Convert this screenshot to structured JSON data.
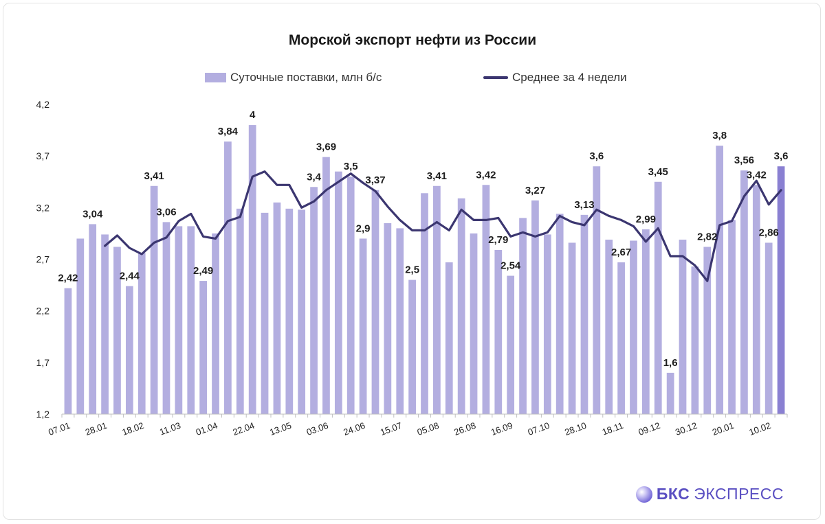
{
  "chart_data": {
    "type": "bar",
    "title": "Морской экспорт нефти из России",
    "legend": {
      "bars": "Суточные поставки, млн б/с",
      "line": "Среднее за 4 недели",
      "placement": "top"
    },
    "ylim": [
      1.2,
      4.2
    ],
    "yticks": [
      "1,2",
      "1,7",
      "2,2",
      "2,7",
      "3,2",
      "3,7",
      "4,2"
    ],
    "xtick_labels": [
      "07.01",
      "28.01",
      "18.02",
      "11.03",
      "01.04",
      "22.04",
      "13.05",
      "03.06",
      "24.06",
      "15.07",
      "05.08",
      "26.08",
      "16.09",
      "07.10",
      "28.10",
      "18.11",
      "09.12",
      "30.12",
      "20.01",
      "10.02"
    ],
    "xtick_every": 3,
    "series": [
      {
        "name": "Суточные поставки, млн б/с",
        "type": "bar",
        "values": [
          2.42,
          2.9,
          3.04,
          2.94,
          2.82,
          2.44,
          2.76,
          3.41,
          3.06,
          3.02,
          3.02,
          2.49,
          2.95,
          3.84,
          3.19,
          4.0,
          3.15,
          3.25,
          3.19,
          3.18,
          3.4,
          3.69,
          3.55,
          3.5,
          2.9,
          3.37,
          3.05,
          3.0,
          2.5,
          3.34,
          3.41,
          2.67,
          3.29,
          2.95,
          3.42,
          2.79,
          2.54,
          3.1,
          3.27,
          2.94,
          3.14,
          2.86,
          3.13,
          3.6,
          2.89,
          2.67,
          2.88,
          2.99,
          3.45,
          1.6,
          2.89,
          2.63,
          2.82,
          3.8,
          3.08,
          3.56,
          3.42,
          2.86,
          3.6
        ]
      },
      {
        "name": "Среднее за 4 недели",
        "type": "line",
        "values": [
          null,
          null,
          null,
          2.83,
          2.93,
          2.81,
          2.75,
          2.86,
          2.91,
          3.07,
          3.14,
          2.92,
          2.9,
          3.07,
          3.11,
          3.5,
          3.55,
          3.42,
          3.42,
          3.2,
          3.26,
          3.37,
          3.45,
          3.53,
          3.44,
          3.36,
          3.21,
          3.08,
          2.98,
          2.98,
          3.06,
          2.98,
          3.18,
          3.08,
          3.08,
          3.1,
          2.92,
          2.96,
          2.92,
          2.96,
          3.12,
          3.06,
          3.03,
          3.18,
          3.12,
          3.08,
          3.02,
          2.87,
          3.0,
          2.73,
          2.73,
          2.64,
          2.49,
          3.03,
          3.07,
          3.31,
          3.46,
          3.23,
          3.37
        ]
      }
    ],
    "data_labels": [
      {
        "index": 0,
        "text": "2,42"
      },
      {
        "index": 2,
        "text": "3,04"
      },
      {
        "index": 5,
        "text": "2,44"
      },
      {
        "index": 7,
        "text": "3,41"
      },
      {
        "index": 8,
        "text": "3,06"
      },
      {
        "index": 11,
        "text": "2,49"
      },
      {
        "index": 13,
        "text": "3,84"
      },
      {
        "index": 15,
        "text": "4"
      },
      {
        "index": 20,
        "text": "3,4"
      },
      {
        "index": 21,
        "text": "3,69"
      },
      {
        "index": 23,
        "text": "3,5"
      },
      {
        "index": 24,
        "text": "2,9"
      },
      {
        "index": 25,
        "text": "3,37"
      },
      {
        "index": 28,
        "text": "2,5"
      },
      {
        "index": 30,
        "text": "3,41"
      },
      {
        "index": 34,
        "text": "3,42"
      },
      {
        "index": 35,
        "text": "2,79"
      },
      {
        "index": 36,
        "text": "2,54"
      },
      {
        "index": 38,
        "text": "3,27"
      },
      {
        "index": 42,
        "text": "3,13"
      },
      {
        "index": 43,
        "text": "3,6"
      },
      {
        "index": 45,
        "text": "2,67"
      },
      {
        "index": 47,
        "text": "2,99"
      },
      {
        "index": 48,
        "text": "3,45"
      },
      {
        "index": 49,
        "text": "1,6"
      },
      {
        "index": 52,
        "text": "2,82"
      },
      {
        "index": 53,
        "text": "3,8"
      },
      {
        "index": 55,
        "text": "3,56"
      },
      {
        "index": 56,
        "text": "3,42"
      },
      {
        "index": 57,
        "text": "2,86"
      },
      {
        "index": 58,
        "text": "3,6"
      }
    ],
    "colors": {
      "bar": "#b3aee0",
      "bar_highlight": "#8a80d2",
      "line": "#3b3670",
      "axis": "#bfbfbf",
      "text": "#222222"
    },
    "highlight_last_bar": true,
    "grid": false
  },
  "brand": {
    "strong": "БКС",
    "light": "ЭКСПРЕСС"
  }
}
